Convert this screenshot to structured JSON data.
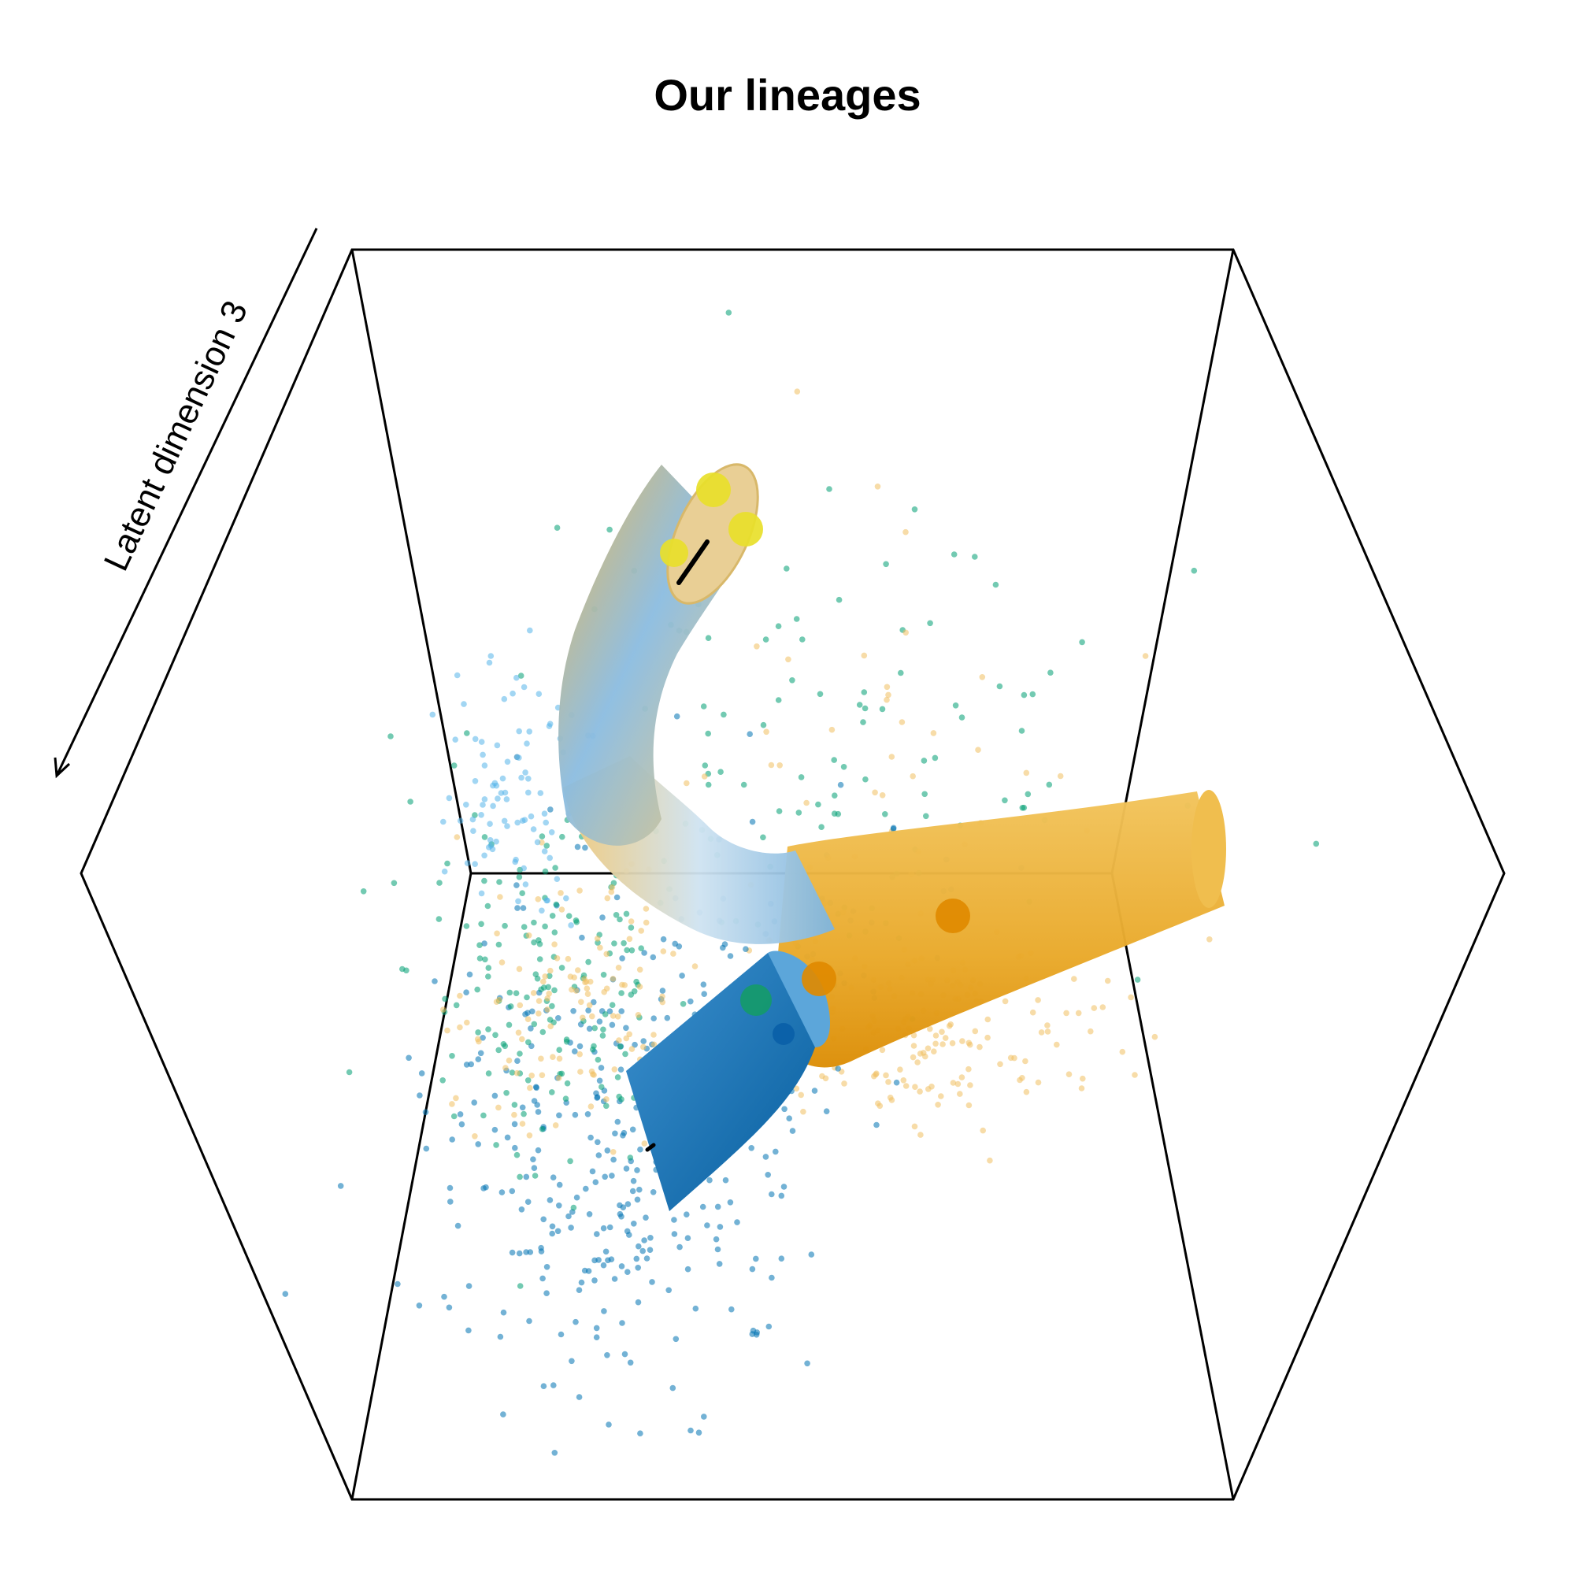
{
  "chart_data": {
    "type": "scatter",
    "title": "Our lineages",
    "axes": {
      "z_label": "Latent dimension 3"
    },
    "view": "3d-box",
    "colors": {
      "sky_blue": "#56B4E9",
      "bluish_green": "#009E73",
      "orange": "#E69F00",
      "dark_blue": "#0072B2",
      "light_orange": "#F0C060",
      "yellow": "#F0E442"
    },
    "lineage_nodes": [
      {
        "color": "#E8E02A",
        "size": "large"
      },
      {
        "color": "#E8E02A",
        "size": "large"
      },
      {
        "color": "#E8E02A",
        "size": "large"
      },
      {
        "color": "#E08A00",
        "size": "large"
      },
      {
        "color": "#E08A00",
        "size": "large"
      },
      {
        "color": "#159A6A",
        "size": "large"
      },
      {
        "color": "#0A5FA8",
        "size": "large"
      }
    ],
    "grid": false,
    "legend": "none"
  }
}
